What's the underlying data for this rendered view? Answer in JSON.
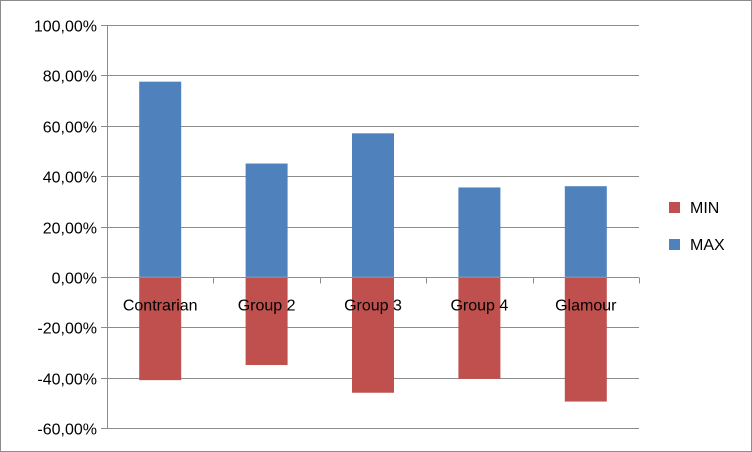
{
  "chart_data": {
    "type": "bar",
    "stacked": true,
    "categories": [
      "Contrarian",
      "Group 2",
      "Group 3",
      "Group 4",
      "Glamour"
    ],
    "series": [
      {
        "name": "MIN",
        "color": "#c0504d",
        "values": [
          -0.41,
          -0.35,
          -0.46,
          -0.405,
          -0.495
        ]
      },
      {
        "name": "MAX",
        "color": "#4f81bd",
        "values": [
          0.775,
          0.45,
          0.57,
          0.355,
          0.36
        ]
      }
    ],
    "y_ticks": [
      -0.6,
      -0.4,
      -0.2,
      0,
      0.2,
      0.4,
      0.6,
      0.8,
      1.0
    ],
    "y_tick_labels": [
      "-60,00%",
      "-40,00%",
      "-20,00%",
      "0,00%",
      "20,00%",
      "40,00%",
      "60,00%",
      "80,00%",
      "100,00%"
    ],
    "ylim": [
      -0.6,
      1.0
    ],
    "grid": true,
    "legend_position": "right",
    "legend": [
      {
        "name": "MIN",
        "color": "#c0504d"
      },
      {
        "name": "MAX",
        "color": "#4f81bd"
      }
    ],
    "title": "",
    "xlabel": "",
    "ylabel": ""
  }
}
